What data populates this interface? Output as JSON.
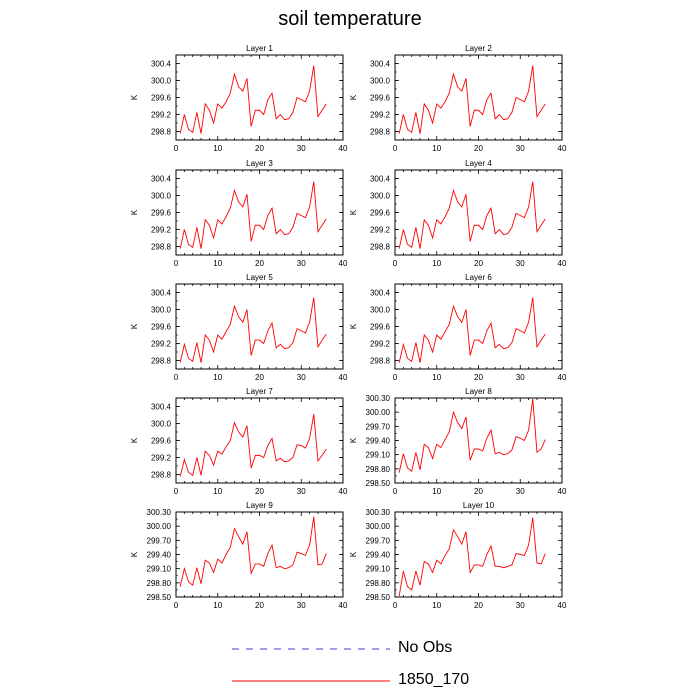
{
  "figure": {
    "title": "soil temperature"
  },
  "legend": [
    {
      "label": "No Obs",
      "color": "#3b3bd6",
      "style": "dashed"
    },
    {
      "label": "1850_170",
      "color": "#ff0000",
      "style": "solid"
    }
  ],
  "chart_data": [
    {
      "type": "line",
      "title": "Layer 1",
      "ylabel": "K",
      "xlim": [
        0,
        40
      ],
      "ylim": [
        298.6,
        300.6
      ],
      "xticks": [
        0,
        10,
        20,
        30,
        40
      ],
      "yticks": [
        298.8,
        299.2,
        299.6,
        300.0,
        300.4
      ],
      "ytick_decimals": 1,
      "series": [
        {
          "name": "1850_170",
          "color": "#ff0000",
          "x": [
            1,
            2,
            3,
            4,
            5,
            6,
            7,
            8,
            9,
            10,
            11,
            12,
            13,
            14,
            15,
            16,
            17,
            18,
            19,
            20,
            21,
            22,
            23,
            24,
            25,
            26,
            27,
            28,
            29,
            30,
            31,
            32,
            33,
            34,
            35,
            36
          ],
          "y": [
            298.75,
            299.2,
            298.85,
            298.78,
            299.25,
            298.75,
            299.45,
            299.3,
            299.0,
            299.45,
            299.35,
            299.5,
            299.7,
            300.15,
            299.85,
            299.75,
            300.05,
            298.92,
            299.3,
            299.3,
            299.2,
            299.55,
            299.7,
            299.1,
            299.2,
            299.08,
            299.1,
            299.25,
            299.6,
            299.55,
            299.5,
            299.75,
            300.35,
            299.15,
            299.3,
            299.45
          ]
        }
      ]
    },
    {
      "type": "line",
      "title": "Layer 2",
      "ylabel": "K",
      "xlim": [
        0,
        40
      ],
      "ylim": [
        298.6,
        300.6
      ],
      "xticks": [
        0,
        10,
        20,
        30,
        40
      ],
      "yticks": [
        298.8,
        299.2,
        299.6,
        300.0,
        300.4
      ],
      "ytick_decimals": 1,
      "series": [
        {
          "name": "1850_170",
          "color": "#ff0000",
          "x": [
            1,
            2,
            3,
            4,
            5,
            6,
            7,
            8,
            9,
            10,
            11,
            12,
            13,
            14,
            15,
            16,
            17,
            18,
            19,
            20,
            21,
            22,
            23,
            24,
            25,
            26,
            27,
            28,
            29,
            30,
            31,
            32,
            33,
            34,
            35,
            36
          ],
          "y": [
            298.75,
            299.2,
            298.85,
            298.78,
            299.25,
            298.75,
            299.45,
            299.3,
            299.0,
            299.45,
            299.35,
            299.5,
            299.7,
            300.15,
            299.85,
            299.75,
            300.05,
            298.92,
            299.3,
            299.3,
            299.2,
            299.55,
            299.7,
            299.1,
            299.2,
            299.08,
            299.1,
            299.25,
            299.6,
            299.55,
            299.5,
            299.75,
            300.35,
            299.15,
            299.3,
            299.45
          ]
        }
      ]
    },
    {
      "type": "line",
      "title": "Layer 3",
      "ylabel": "K",
      "xlim": [
        0,
        40
      ],
      "ylim": [
        298.6,
        300.6
      ],
      "xticks": [
        0,
        10,
        20,
        30,
        40
      ],
      "yticks": [
        298.8,
        299.2,
        299.6,
        300.0,
        300.4
      ],
      "ytick_decimals": 1,
      "series": [
        {
          "name": "1850_170",
          "color": "#ff0000",
          "x": [
            1,
            2,
            3,
            4,
            5,
            6,
            7,
            8,
            9,
            10,
            11,
            12,
            13,
            14,
            15,
            16,
            17,
            18,
            19,
            20,
            21,
            22,
            23,
            24,
            25,
            26,
            27,
            28,
            29,
            30,
            31,
            32,
            33,
            34,
            35,
            36
          ],
          "y": [
            298.75,
            299.2,
            298.85,
            298.78,
            299.25,
            298.75,
            299.43,
            299.3,
            299.0,
            299.43,
            299.33,
            299.5,
            299.7,
            300.12,
            299.85,
            299.73,
            300.03,
            298.92,
            299.3,
            299.3,
            299.2,
            299.53,
            299.7,
            299.1,
            299.2,
            299.08,
            299.1,
            299.25,
            299.58,
            299.53,
            299.48,
            299.73,
            300.33,
            299.15,
            299.3,
            299.45
          ]
        }
      ]
    },
    {
      "type": "line",
      "title": "Layer 4",
      "ylabel": "K",
      "xlim": [
        0,
        40
      ],
      "ylim": [
        298.6,
        300.6
      ],
      "xticks": [
        0,
        10,
        20,
        30,
        40
      ],
      "yticks": [
        298.8,
        299.2,
        299.6,
        300.0,
        300.4
      ],
      "ytick_decimals": 1,
      "series": [
        {
          "name": "1850_170",
          "color": "#ff0000",
          "x": [
            1,
            2,
            3,
            4,
            5,
            6,
            7,
            8,
            9,
            10,
            11,
            12,
            13,
            14,
            15,
            16,
            17,
            18,
            19,
            20,
            21,
            22,
            23,
            24,
            25,
            26,
            27,
            28,
            29,
            30,
            31,
            32,
            33,
            34,
            35,
            36
          ],
          "y": [
            298.75,
            299.2,
            298.85,
            298.78,
            299.25,
            298.75,
            299.43,
            299.3,
            299.0,
            299.43,
            299.33,
            299.5,
            299.7,
            300.12,
            299.85,
            299.73,
            300.03,
            298.92,
            299.3,
            299.3,
            299.2,
            299.53,
            299.7,
            299.1,
            299.2,
            299.08,
            299.1,
            299.25,
            299.58,
            299.53,
            299.48,
            299.73,
            300.33,
            299.15,
            299.3,
            299.45
          ]
        }
      ]
    },
    {
      "type": "line",
      "title": "Layer 5",
      "ylabel": "K",
      "xlim": [
        0,
        40
      ],
      "ylim": [
        298.6,
        300.6
      ],
      "xticks": [
        0,
        10,
        20,
        30,
        40
      ],
      "yticks": [
        298.8,
        299.2,
        299.6,
        300.0,
        300.4
      ],
      "ytick_decimals": 1,
      "series": [
        {
          "name": "1850_170",
          "color": "#ff0000",
          "x": [
            1,
            2,
            3,
            4,
            5,
            6,
            7,
            8,
            9,
            10,
            11,
            12,
            13,
            14,
            15,
            16,
            17,
            18,
            19,
            20,
            21,
            22,
            23,
            24,
            25,
            26,
            27,
            28,
            29,
            30,
            31,
            32,
            33,
            34,
            35,
            36
          ],
          "y": [
            298.75,
            299.18,
            298.85,
            298.78,
            299.22,
            298.75,
            299.4,
            299.28,
            299.0,
            299.4,
            299.3,
            299.48,
            299.65,
            300.08,
            299.83,
            299.7,
            300.0,
            298.92,
            299.28,
            299.28,
            299.2,
            299.5,
            299.68,
            299.1,
            299.18,
            299.08,
            299.1,
            299.22,
            299.55,
            299.5,
            299.45,
            299.7,
            300.28,
            299.12,
            299.28,
            299.42
          ]
        }
      ]
    },
    {
      "type": "line",
      "title": "Layer 6",
      "ylabel": "K",
      "xlim": [
        0,
        40
      ],
      "ylim": [
        298.6,
        300.6
      ],
      "xticks": [
        0,
        10,
        20,
        30,
        40
      ],
      "yticks": [
        298.8,
        299.2,
        299.6,
        300.0,
        300.4
      ],
      "ytick_decimals": 1,
      "series": [
        {
          "name": "1850_170",
          "color": "#ff0000",
          "x": [
            1,
            2,
            3,
            4,
            5,
            6,
            7,
            8,
            9,
            10,
            11,
            12,
            13,
            14,
            15,
            16,
            17,
            18,
            19,
            20,
            21,
            22,
            23,
            24,
            25,
            26,
            27,
            28,
            29,
            30,
            31,
            32,
            33,
            34,
            35,
            36
          ],
          "y": [
            298.75,
            299.18,
            298.85,
            298.78,
            299.22,
            298.75,
            299.4,
            299.28,
            299.0,
            299.4,
            299.3,
            299.48,
            299.65,
            300.08,
            299.83,
            299.7,
            300.0,
            298.92,
            299.28,
            299.28,
            299.2,
            299.5,
            299.68,
            299.1,
            299.18,
            299.08,
            299.1,
            299.22,
            299.55,
            299.5,
            299.45,
            299.7,
            300.28,
            299.12,
            299.28,
            299.42
          ]
        }
      ]
    },
    {
      "type": "line",
      "title": "Layer 7",
      "ylabel": "K",
      "xlim": [
        0,
        40
      ],
      "ylim": [
        298.6,
        300.6
      ],
      "xticks": [
        0,
        10,
        20,
        30,
        40
      ],
      "yticks": [
        298.8,
        299.2,
        299.6,
        300.0,
        300.4
      ],
      "ytick_decimals": 1,
      "series": [
        {
          "name": "1850_170",
          "color": "#ff0000",
          "x": [
            1,
            2,
            3,
            4,
            5,
            6,
            7,
            8,
            9,
            10,
            11,
            12,
            13,
            14,
            15,
            16,
            17,
            18,
            19,
            20,
            21,
            22,
            23,
            24,
            25,
            26,
            27,
            28,
            29,
            30,
            31,
            32,
            33,
            34,
            35,
            36
          ],
          "y": [
            298.75,
            299.15,
            298.85,
            298.78,
            299.2,
            298.78,
            299.35,
            299.25,
            299.02,
            299.35,
            299.28,
            299.45,
            299.6,
            300.02,
            299.8,
            299.68,
            299.95,
            298.95,
            299.25,
            299.25,
            299.2,
            299.48,
            299.65,
            299.12,
            299.18,
            299.1,
            299.12,
            299.2,
            299.5,
            299.48,
            299.42,
            299.65,
            300.22,
            299.12,
            299.25,
            299.4
          ]
        }
      ]
    },
    {
      "type": "line",
      "title": "Layer 8",
      "ylabel": "K",
      "xlim": [
        0,
        40
      ],
      "ylim": [
        298.5,
        300.3
      ],
      "xticks": [
        0,
        10,
        20,
        30,
        40
      ],
      "yticks": [
        298.5,
        298.8,
        299.1,
        299.4,
        299.7,
        300.0,
        300.3
      ],
      "ytick_decimals": 2,
      "series": [
        {
          "name": "1850_170",
          "color": "#ff0000",
          "x": [
            1,
            2,
            3,
            4,
            5,
            6,
            7,
            8,
            9,
            10,
            11,
            12,
            13,
            14,
            15,
            16,
            17,
            18,
            19,
            20,
            21,
            22,
            23,
            24,
            25,
            26,
            27,
            28,
            29,
            30,
            31,
            32,
            33,
            34,
            35,
            36
          ],
          "y": [
            298.72,
            299.12,
            298.82,
            298.75,
            299.15,
            298.78,
            299.32,
            299.25,
            299.02,
            299.32,
            299.25,
            299.42,
            299.58,
            300.0,
            299.78,
            299.65,
            299.9,
            298.98,
            299.22,
            299.22,
            299.18,
            299.45,
            299.62,
            299.12,
            299.15,
            299.1,
            299.12,
            299.2,
            299.48,
            299.45,
            299.4,
            299.62,
            300.28,
            299.15,
            299.22,
            299.42
          ]
        }
      ]
    },
    {
      "type": "line",
      "title": "Layer 9",
      "ylabel": "K",
      "xlim": [
        0,
        40
      ],
      "ylim": [
        298.5,
        300.3
      ],
      "xticks": [
        0,
        10,
        20,
        30,
        40
      ],
      "yticks": [
        298.5,
        298.8,
        299.1,
        299.4,
        299.7,
        300.0,
        300.3
      ],
      "ytick_decimals": 2,
      "series": [
        {
          "name": "1850_170",
          "color": "#ff0000",
          "x": [
            1,
            2,
            3,
            4,
            5,
            6,
            7,
            8,
            9,
            10,
            11,
            12,
            13,
            14,
            15,
            16,
            17,
            18,
            19,
            20,
            21,
            22,
            23,
            24,
            25,
            26,
            27,
            28,
            29,
            30,
            31,
            32,
            33,
            34,
            35,
            36
          ],
          "y": [
            298.72,
            299.1,
            298.82,
            298.75,
            299.12,
            298.78,
            299.28,
            299.22,
            299.02,
            299.3,
            299.22,
            299.4,
            299.55,
            299.95,
            299.78,
            299.62,
            299.88,
            299.0,
            299.2,
            299.2,
            299.15,
            299.42,
            299.6,
            299.12,
            299.15,
            299.1,
            299.12,
            299.18,
            299.45,
            299.42,
            299.38,
            299.6,
            300.2,
            299.18,
            299.2,
            299.42
          ]
        }
      ]
    },
    {
      "type": "line",
      "title": "Layer 10",
      "ylabel": "K",
      "xlim": [
        0,
        40
      ],
      "ylim": [
        298.5,
        300.3
      ],
      "xticks": [
        0,
        10,
        20,
        30,
        40
      ],
      "yticks": [
        298.5,
        298.8,
        299.1,
        299.4,
        299.7,
        300.0,
        300.3
      ],
      "ytick_decimals": 2,
      "series": [
        {
          "name": "1850_170",
          "color": "#ff0000",
          "x": [
            1,
            2,
            3,
            4,
            5,
            6,
            7,
            8,
            9,
            10,
            11,
            12,
            13,
            14,
            15,
            16,
            17,
            18,
            19,
            20,
            21,
            22,
            23,
            24,
            25,
            26,
            27,
            28,
            29,
            30,
            31,
            32,
            33,
            34,
            35,
            36
          ],
          "y": [
            298.52,
            299.05,
            298.72,
            298.65,
            299.05,
            298.75,
            299.25,
            299.2,
            299.02,
            299.28,
            299.2,
            299.38,
            299.52,
            299.92,
            299.78,
            299.62,
            299.88,
            299.02,
            299.18,
            299.18,
            299.15,
            299.4,
            299.58,
            299.15,
            299.15,
            299.12,
            299.15,
            299.18,
            299.42,
            299.4,
            299.38,
            299.6,
            300.18,
            299.22,
            299.2,
            299.42
          ]
        }
      ]
    }
  ]
}
